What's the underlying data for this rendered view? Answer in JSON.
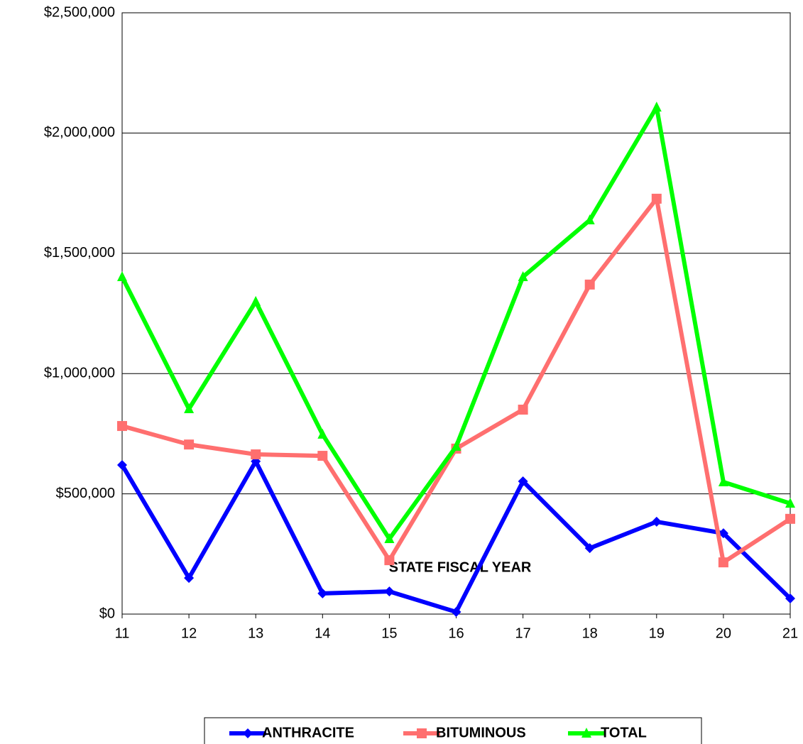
{
  "chart_data": {
    "type": "line",
    "x_label": "STATE FISCAL YEAR",
    "categories": [
      "11",
      "12",
      "13",
      "14",
      "15",
      "16",
      "17",
      "18",
      "19",
      "20",
      "21"
    ],
    "series": [
      {
        "name": "ANTHRACITE",
        "color": "#0000ff",
        "marker": "diamond",
        "values": [
          620000,
          150000,
          635000,
          86000,
          94000,
          9000,
          552000,
          274000,
          384000,
          336000,
          65000
        ]
      },
      {
        "name": "BITUMINOUS",
        "color": "#ff6f6f",
        "marker": "square",
        "values": [
          782000,
          705000,
          664000,
          658000,
          224000,
          688000,
          850000,
          1370000,
          1727000,
          215000,
          396000
        ]
      },
      {
        "name": "TOTAL",
        "color": "#00ff00",
        "marker": "triangle",
        "values": [
          1402000,
          853000,
          1299000,
          747000,
          313000,
          697000,
          1402000,
          1638000,
          2107000,
          549000,
          460000
        ]
      }
    ],
    "ylim": [
      0,
      2500000
    ],
    "yticks": [
      {
        "value": 0,
        "label": "$0"
      },
      {
        "value": 500000,
        "label": "$500,000"
      },
      {
        "value": 1000000,
        "label": "$1,000,000"
      },
      {
        "value": 1500000,
        "label": "$1,500,000"
      },
      {
        "value": 2000000,
        "label": "$2,000,000"
      },
      {
        "value": 2500000,
        "label": "$2,500,000"
      }
    ],
    "grid": true,
    "legend": "bottom"
  }
}
